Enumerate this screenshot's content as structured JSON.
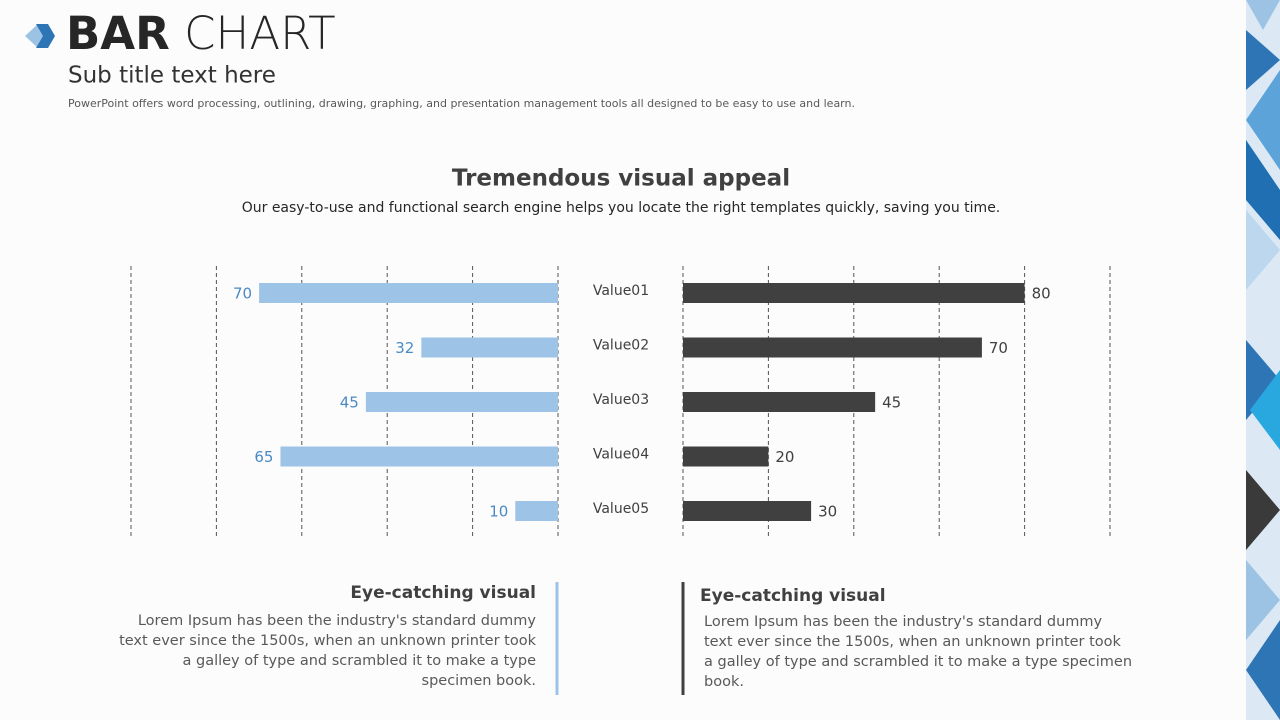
{
  "header": {
    "title_bold": "BAR",
    "title_light": "CHART",
    "subtitle": "Sub title text here",
    "description": "PowerPoint offers word processing, outlining, drawing, graphing, and presentation management tools all designed to be easy to use and learn."
  },
  "chart_data": {
    "type": "bar",
    "title": "Tremendous visual appeal",
    "subtitle": "Our easy-to-use and functional search engine helps you locate the right templates quickly, saving you time.",
    "categories": [
      "Value01",
      "Value02",
      "Value03",
      "Value04",
      "Value05"
    ],
    "series": [
      {
        "color": "#9dc3e6",
        "values": [
          70,
          32,
          45,
          65,
          10
        ]
      },
      {
        "color": "#404040",
        "values": [
          80,
          70,
          45,
          20,
          30
        ]
      }
    ],
    "xlim": [
      0,
      100
    ],
    "xticks": [
      0,
      20,
      40,
      60,
      80,
      100
    ],
    "grid": true
  },
  "notes": [
    {
      "heading": "Eye-catching visual",
      "body": "Lorem Ipsum has been the industry's standard dummy text ever since the 1500s, when an unknown printer took a galley of type and scrambled it to make a type specimen book."
    },
    {
      "heading": "Eye-catching visual",
      "body": "Lorem Ipsum has been the industry's standard dummy text ever since the 1500s, when an unknown printer took a galley of type and scrambled it to make a type specimen book."
    }
  ]
}
